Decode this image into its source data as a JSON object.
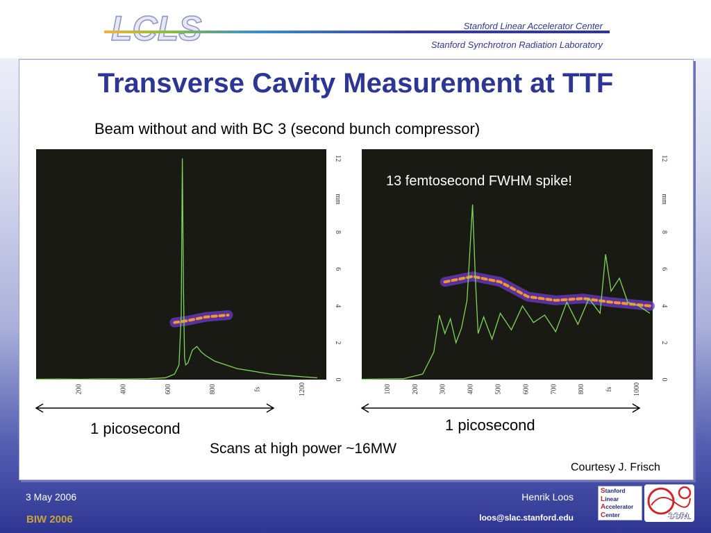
{
  "header": {
    "logo_text": "LCLS",
    "institution_line1": "Stanford Linear Accelerator Center",
    "institution_line2": "Stanford Synchrotron Radiation Laboratory"
  },
  "slide": {
    "title": "Transverse Cavity Measurement at TTF",
    "subtitle": "Beam without and with BC 3 (second bunch compressor)",
    "annotation_spike": "13 femtosecond FWHM spike!",
    "scale_label_left": "1 picosecond",
    "scale_label_right": "1 picosecond",
    "scans_note": "Scans at high power ~16MW",
    "courtesy": "Courtesy J. Frisch"
  },
  "footer": {
    "date": "3 May 2006",
    "conference": "BIW 2006",
    "author": "Henrik Loos",
    "email": "loos@slac.stanford.edu",
    "slac_logo_lines": [
      "Stanford",
      "Linear",
      "Accelerator",
      "Center"
    ],
    "ssrl_logo_text": "SSRL"
  },
  "colors": {
    "title_blue": "#2e3693",
    "plot_background": "#1a1a14",
    "trace_green": "#7ed85a",
    "streak_hot": "#ff9a30",
    "streak_purple": "#6a3cc8"
  },
  "chart_data": [
    {
      "type": "line",
      "title": "",
      "x_unit": "fs",
      "y_unit": "mm",
      "x_ticks": [
        "200",
        "400",
        "600",
        "800",
        "1200"
      ],
      "x_axis_label": "fs",
      "y_ticks": [
        "0",
        "2",
        "4",
        "6",
        "8",
        "12"
      ],
      "y_axis_label": "mm",
      "xlim": [
        0,
        1300
      ],
      "ylim": [
        0,
        12.5
      ],
      "series": [
        {
          "x": [
            0,
            100,
            200,
            300,
            400,
            500,
            580,
            620,
            640,
            650,
            655,
            660,
            665,
            670,
            680,
            700,
            720,
            740,
            760,
            800,
            850,
            900,
            950,
            1000,
            1050,
            1100,
            1150,
            1200,
            1260
          ],
          "y": [
            0.02,
            0.03,
            0.02,
            0.04,
            0.03,
            0.05,
            0.1,
            0.3,
            0.8,
            3.5,
            12.0,
            5.0,
            1.2,
            0.8,
            0.9,
            1.6,
            1.8,
            1.5,
            1.3,
            1.0,
            0.8,
            0.6,
            0.5,
            0.4,
            0.3,
            0.25,
            0.2,
            0.15,
            0.1
          ]
        }
      ],
      "streak": {
        "x": [
          620,
          680,
          760,
          860
        ],
        "y": [
          3.1,
          3.2,
          3.4,
          3.5
        ]
      }
    },
    {
      "type": "line",
      "title": "",
      "x_unit": "fs",
      "y_unit": "mm",
      "x_ticks": [
        "100",
        "200",
        "300",
        "400",
        "500",
        "600",
        "700",
        "800",
        "1000"
      ],
      "x_axis_label": "fs",
      "y_ticks": [
        "0",
        "2",
        "4",
        "6",
        "8",
        "12"
      ],
      "y_axis_label": "mm",
      "xlim": [
        0,
        1050
      ],
      "ylim": [
        0,
        12.5
      ],
      "series": [
        {
          "x": [
            0,
            150,
            220,
            260,
            280,
            300,
            320,
            340,
            360,
            380,
            400,
            410,
            420,
            440,
            470,
            500,
            540,
            580,
            620,
            660,
            700,
            740,
            780,
            820,
            860,
            880,
            900,
            930,
            960,
            1000,
            1040
          ],
          "y": [
            0.02,
            0.05,
            0.3,
            1.5,
            3.5,
            2.5,
            3.3,
            2.0,
            2.8,
            4.3,
            9.5,
            5.5,
            2.5,
            3.4,
            2.2,
            3.6,
            2.7,
            4.0,
            3.1,
            3.5,
            2.6,
            4.2,
            3.0,
            4.4,
            3.6,
            6.8,
            4.8,
            5.5,
            4.2,
            4.0,
            3.6
          ]
        }
      ],
      "streak": {
        "x": [
          300,
          400,
          500,
          600,
          700,
          800,
          900,
          1040
        ],
        "y": [
          5.3,
          5.6,
          5.3,
          4.5,
          4.3,
          4.4,
          4.2,
          4.0
        ]
      }
    }
  ]
}
